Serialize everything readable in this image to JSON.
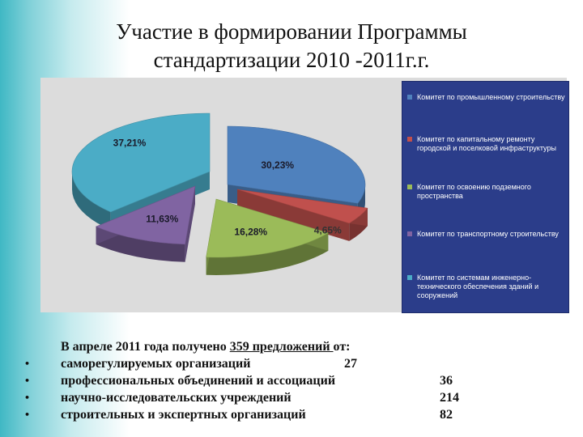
{
  "slide": {
    "title_line1": "Участие в формировании Программы",
    "title_line2": "стандартизации 2010 -2011г.г."
  },
  "chart_data": {
    "type": "pie",
    "title": "",
    "legend_position": "right",
    "series": [
      {
        "name": "Комитет по промышленному строительству",
        "value": 30.23,
        "label": "30,23%",
        "color": "#4f81bd"
      },
      {
        "name": "Комитет по капитальному ремонту городской и поселковой инфраструктуры",
        "value": 4.65,
        "label": "4,65%",
        "color": "#c0504d"
      },
      {
        "name": "Комитет по освоению подземного пространства",
        "value": 16.28,
        "label": "16,28%",
        "color": "#9bbb59"
      },
      {
        "name": "Комитет по транспортному строительству",
        "value": 11.63,
        "label": "11,63%",
        "color": "#8064a2"
      },
      {
        "name": "Комитет по системам инженерно-технического обеспечения зданий и сооружений",
        "value": 37.21,
        "label": "37,21%",
        "color": "#4bacc6"
      }
    ]
  },
  "summary": {
    "intro_before": "В апреле 2011 года получено ",
    "intro_link": "359 предложений ",
    "intro_after": "от:",
    "items": [
      {
        "label": "саморегулируемых организаций",
        "count": "27"
      },
      {
        "label": "профессиональных объединений и ассоциаций",
        "count": "36"
      },
      {
        "label": "научно-исследовательских учреждений",
        "count": "214"
      },
      {
        "label": "строительных и экспертных организаций",
        "count": "82"
      }
    ],
    "bullet": "•"
  }
}
